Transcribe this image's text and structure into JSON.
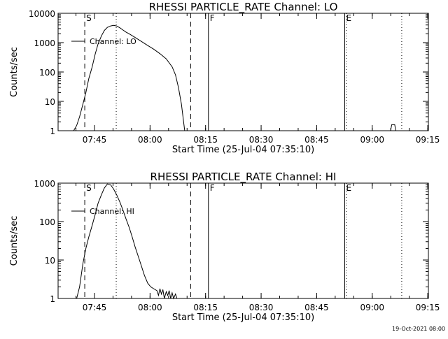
{
  "chart_data": [
    {
      "type": "line",
      "title": "RHESSI PARTICLE_RATE Channel: LO",
      "xlabel": "Start Time (25-Jul-04 07:35:10)",
      "ylabel": "Counts/sec",
      "yscale": "log",
      "xlim_minutes": [
        0,
        100
      ],
      "ylim": [
        1,
        10000
      ],
      "x_ticks": [
        {
          "label": "07:45",
          "minute": 9.83
        },
        {
          "label": "08:00",
          "minute": 24.83
        },
        {
          "label": "08:15",
          "minute": 39.83
        },
        {
          "label": "08:30",
          "minute": 54.83
        },
        {
          "label": "08:45",
          "minute": 69.83
        },
        {
          "label": "09:00",
          "minute": 84.83
        },
        {
          "label": "09:15",
          "minute": 99.83
        }
      ],
      "y_ticks": [
        {
          "label": "1",
          "value": 1
        },
        {
          "label": "10",
          "value": 10
        },
        {
          "label": "100",
          "value": 100
        },
        {
          "label": "1000",
          "value": 1000
        },
        {
          "label": "10000",
          "value": 10000
        }
      ],
      "markers": [
        {
          "label": "S",
          "minute": 7.2,
          "style": "dashed"
        },
        {
          "label": "",
          "minute": 15.7,
          "style": "dotted"
        },
        {
          "label": "",
          "minute": 35.8,
          "style": "dashed"
        },
        {
          "label": "F",
          "minute": 40.6,
          "style": "solid"
        },
        {
          "label": "E",
          "minute": 77.4,
          "style": "solid"
        },
        {
          "label": "",
          "minute": 77.8,
          "style": "dotted"
        },
        {
          "label": "",
          "minute": 92.8,
          "style": "dotted"
        }
      ],
      "legend": {
        "label": "Channel: LO",
        "position": "top-left"
      },
      "series": [
        {
          "name": "Channel: LO",
          "segments": [
            {
              "x": [
                4.2,
                5.0,
                5.8,
                6.7,
                7.5,
                8.3,
                9.2,
                10.0,
                10.8,
                11.7,
                12.5,
                13.3,
                14.2,
                15.0,
                15.8,
                16.7,
                17.5,
                18.3,
                19.2,
                20.8,
                22.5,
                24.2,
                25.8,
                27.5,
                29.2,
                30.8,
                31.7,
                32.5,
                33.3,
                33.9,
                34.2
              ],
              "y": [
                1,
                1.5,
                3,
                8,
                20,
                60,
                150,
                400,
                900,
                1700,
                2600,
                3300,
                3700,
                3900,
                3700,
                3200,
                2700,
                2300,
                2000,
                1500,
                1100,
                800,
                600,
                420,
                280,
                150,
                80,
                30,
                8,
                2,
                1
              ]
            },
            {
              "x": [
                89.8,
                90.1,
                90.5,
                90.9,
                91.2
              ],
              "y": [
                1,
                1.6,
                1.6,
                1.6,
                1
              ]
            }
          ]
        }
      ]
    },
    {
      "type": "line",
      "title": "RHESSI PARTICLE_RATE Channel: HI",
      "xlabel": "Start Time (25-Jul-04 07:35:10)",
      "ylabel": "Counts/sec",
      "yscale": "log",
      "xlim_minutes": [
        0,
        100
      ],
      "ylim": [
        1,
        1000
      ],
      "x_ticks": [
        {
          "label": "07:45",
          "minute": 9.83
        },
        {
          "label": "08:00",
          "minute": 24.83
        },
        {
          "label": "08:15",
          "minute": 39.83
        },
        {
          "label": "08:30",
          "minute": 54.83
        },
        {
          "label": "08:45",
          "minute": 69.83
        },
        {
          "label": "09:00",
          "minute": 84.83
        },
        {
          "label": "09:15",
          "minute": 99.83
        }
      ],
      "y_ticks": [
        {
          "label": "1",
          "value": 1
        },
        {
          "label": "10",
          "value": 10
        },
        {
          "label": "100",
          "value": 100
        },
        {
          "label": "1000",
          "value": 1000
        }
      ],
      "markers": [
        {
          "label": "S",
          "minute": 7.2,
          "style": "dashed"
        },
        {
          "label": "",
          "minute": 15.7,
          "style": "dotted"
        },
        {
          "label": "",
          "minute": 35.8,
          "style": "dashed"
        },
        {
          "label": "F",
          "minute": 40.6,
          "style": "solid"
        },
        {
          "label": "E",
          "minute": 77.4,
          "style": "solid"
        },
        {
          "label": "",
          "minute": 77.8,
          "style": "dotted"
        },
        {
          "label": "",
          "minute": 92.8,
          "style": "dotted"
        }
      ],
      "legend": {
        "label": "Channel: HI",
        "position": "top-left"
      },
      "series": [
        {
          "name": "Channel: HI",
          "segments": [
            {
              "x": [
                5.0,
                5.8,
                6.7,
                7.5,
                8.3,
                9.2,
                10.0,
                10.8,
                11.7,
                12.5,
                13.3,
                14.2,
                15.0,
                15.8,
                16.7,
                17.5,
                18.3,
                19.2,
                20.0,
                20.8,
                21.7,
                22.5,
                23.3,
                24.2,
                25.0,
                25.8,
                26.7,
                27.1,
                27.5,
                27.9,
                28.3,
                28.7,
                29.2,
                29.6,
                30.0,
                30.4,
                30.8,
                31.2,
                31.7,
                32.1,
                32.5
              ],
              "y": [
                1,
                2,
                8,
                20,
                40,
                80,
                150,
                300,
                500,
                750,
                950,
                900,
                700,
                500,
                320,
                200,
                120,
                70,
                40,
                22,
                12,
                7,
                4,
                2.5,
                2,
                1.8,
                1.6,
                1.2,
                1.8,
                1.3,
                1.7,
                1,
                1.5,
                1.2,
                1.6,
                1,
                1.4,
                1,
                1.3,
                1,
                1
              ]
            }
          ]
        }
      ]
    }
  ],
  "footer": {
    "timestamp": "19-Oct-2021 08:00"
  }
}
